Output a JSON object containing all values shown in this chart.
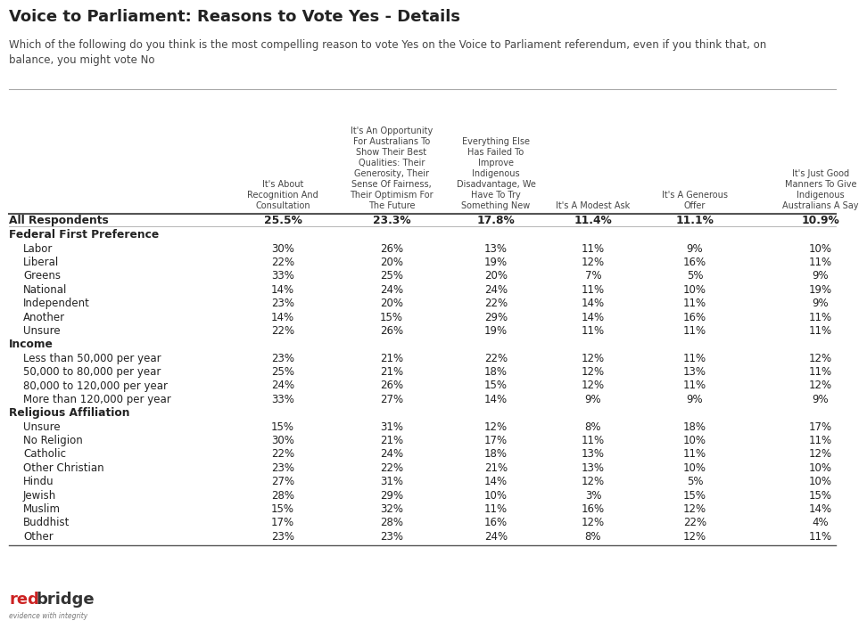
{
  "title": "Voice to Parliament: Reasons to Vote Yes - Details",
  "subtitle": "Which of the following do you think is the most compelling reason to vote Yes on the Voice to Parliament referendum, even if you think that, on\nbalance, you might vote No",
  "col_headers": [
    "It's About\nRecognition And\nConsultation",
    "It's An Opportunity\nFor Australians To\nShow Their Best\nQualities: Their\nGenerosity, Their\nSense Of Fairness,\nTheir Optimism For\nThe Future",
    "Everything Else\nHas Failed To\nImprove\nIndigenous\nDisadvantage, We\nHave To Try\nSomething New",
    "It's A Modest Ask",
    "It's A Generous\nOffer",
    "It's Just Good\nManners To Give\nIndigenous\nAustralians A Say"
  ],
  "rows": [
    {
      "label": "All Respondents",
      "indent": 0,
      "bold": true,
      "values": [
        "25.5%",
        "23.3%",
        "17.8%",
        "11.4%",
        "11.1%",
        "10.9%"
      ]
    },
    {
      "label": "Federal First Preference",
      "indent": 0,
      "bold": true,
      "values": [
        "",
        "",
        "",
        "",
        "",
        ""
      ]
    },
    {
      "label": "Labor",
      "indent": 1,
      "bold": false,
      "values": [
        "30%",
        "26%",
        "13%",
        "11%",
        "9%",
        "10%"
      ]
    },
    {
      "label": "Liberal",
      "indent": 1,
      "bold": false,
      "values": [
        "22%",
        "20%",
        "19%",
        "12%",
        "16%",
        "11%"
      ]
    },
    {
      "label": "Greens",
      "indent": 1,
      "bold": false,
      "values": [
        "33%",
        "25%",
        "20%",
        "7%",
        "5%",
        "9%"
      ]
    },
    {
      "label": "National",
      "indent": 1,
      "bold": false,
      "values": [
        "14%",
        "24%",
        "24%",
        "11%",
        "10%",
        "19%"
      ]
    },
    {
      "label": "Independent",
      "indent": 1,
      "bold": false,
      "values": [
        "23%",
        "20%",
        "22%",
        "14%",
        "11%",
        "9%"
      ]
    },
    {
      "label": "Another",
      "indent": 1,
      "bold": false,
      "values": [
        "14%",
        "15%",
        "29%",
        "14%",
        "16%",
        "11%"
      ]
    },
    {
      "label": "Unsure",
      "indent": 1,
      "bold": false,
      "values": [
        "22%",
        "26%",
        "19%",
        "11%",
        "11%",
        "11%"
      ]
    },
    {
      "label": "Income",
      "indent": 0,
      "bold": true,
      "values": [
        "",
        "",
        "",
        "",
        "",
        ""
      ]
    },
    {
      "label": "Less than 50,000 per year",
      "indent": 1,
      "bold": false,
      "values": [
        "23%",
        "21%",
        "22%",
        "12%",
        "11%",
        "12%"
      ]
    },
    {
      "label": "50,000 to 80,000 per year",
      "indent": 1,
      "bold": false,
      "values": [
        "25%",
        "21%",
        "18%",
        "12%",
        "13%",
        "11%"
      ]
    },
    {
      "label": "80,000 to 120,000 per year",
      "indent": 1,
      "bold": false,
      "values": [
        "24%",
        "26%",
        "15%",
        "12%",
        "11%",
        "12%"
      ]
    },
    {
      "label": "More than 120,000 per year",
      "indent": 1,
      "bold": false,
      "values": [
        "33%",
        "27%",
        "14%",
        "9%",
        "9%",
        "9%"
      ]
    },
    {
      "label": "Religious Affiliation",
      "indent": 0,
      "bold": true,
      "values": [
        "",
        "",
        "",
        "",
        "",
        ""
      ]
    },
    {
      "label": "Unsure",
      "indent": 1,
      "bold": false,
      "values": [
        "15%",
        "31%",
        "12%",
        "8%",
        "18%",
        "17%"
      ]
    },
    {
      "label": "No Religion",
      "indent": 1,
      "bold": false,
      "values": [
        "30%",
        "21%",
        "17%",
        "11%",
        "10%",
        "11%"
      ]
    },
    {
      "label": "Catholic",
      "indent": 1,
      "bold": false,
      "values": [
        "22%",
        "24%",
        "18%",
        "13%",
        "11%",
        "12%"
      ]
    },
    {
      "label": "Other Christian",
      "indent": 1,
      "bold": false,
      "values": [
        "23%",
        "22%",
        "21%",
        "13%",
        "10%",
        "10%"
      ]
    },
    {
      "label": "Hindu",
      "indent": 1,
      "bold": false,
      "values": [
        "27%",
        "31%",
        "14%",
        "12%",
        "5%",
        "10%"
      ]
    },
    {
      "label": "Jewish",
      "indent": 1,
      "bold": false,
      "values": [
        "28%",
        "29%",
        "10%",
        "3%",
        "15%",
        "15%"
      ]
    },
    {
      "label": "Muslim",
      "indent": 1,
      "bold": false,
      "values": [
        "15%",
        "32%",
        "11%",
        "16%",
        "12%",
        "14%"
      ]
    },
    {
      "label": "Buddhist",
      "indent": 1,
      "bold": false,
      "values": [
        "17%",
        "28%",
        "16%",
        "12%",
        "22%",
        "4%"
      ]
    },
    {
      "label": "Other",
      "indent": 1,
      "bold": false,
      "values": [
        "23%",
        "23%",
        "24%",
        "8%",
        "12%",
        "11%"
      ]
    }
  ],
  "bg_color": "#ffffff",
  "text_color_dark": "#222222",
  "text_color_mid": "#444444",
  "line_color": "#aaaaaa"
}
